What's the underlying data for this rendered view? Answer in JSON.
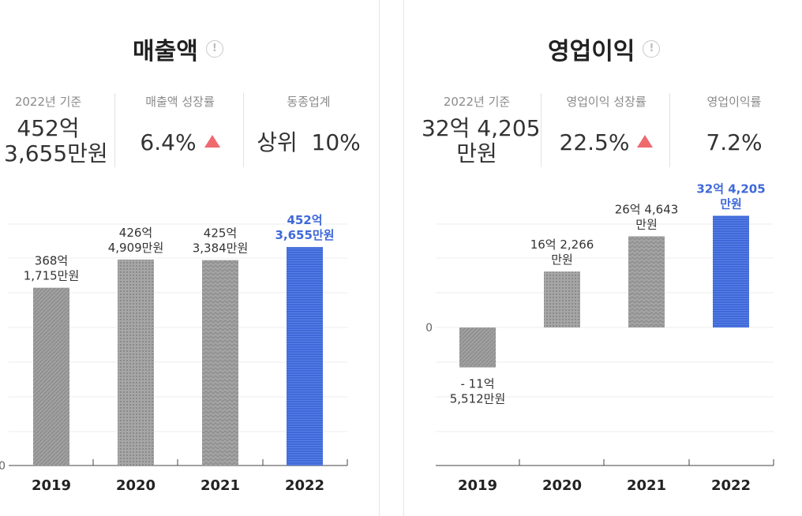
{
  "panels": [
    {
      "title": "매출액",
      "stats": [
        {
          "label": "2022년 기준",
          "value_lines": [
            "452억",
            "3,655만원"
          ]
        },
        {
          "label": "매출액 성장률",
          "value_lines": [
            "6.4%"
          ],
          "trend": "up"
        },
        {
          "label": "동종업계",
          "value_lines": [
            "상위  10%"
          ]
        }
      ]
    },
    {
      "title": "영업이익",
      "stats": [
        {
          "label": "2022년 기준",
          "value_lines": [
            "32억 4,205",
            "만원"
          ]
        },
        {
          "label": "영업이익 성장률",
          "value_lines": [
            "22.5%"
          ],
          "trend": "up"
        },
        {
          "label": "영업이익률",
          "value_lines": [
            "7.2%"
          ]
        }
      ]
    }
  ],
  "chart_data": [
    {
      "type": "bar",
      "title": "매출액",
      "categories": [
        "2019",
        "2020",
        "2021",
        "2022"
      ],
      "values": [
        368.1715,
        426.4909,
        425.3384,
        452.3655
      ],
      "value_unit": "억원",
      "data_labels": [
        [
          "368억",
          "1,715만원"
        ],
        [
          "426억",
          "4,909만원"
        ],
        [
          "425억",
          "3,384만원"
        ],
        [
          "452억",
          "3,655만원"
        ]
      ],
      "highlight_index": 3,
      "y_tick_labels": [
        "0"
      ],
      "ylim": [
        0,
        500
      ],
      "grid": true,
      "colors": {
        "base": "#9e9e9e",
        "highlight": "#3f69d8",
        "highlight_label": "#3f69d8"
      }
    },
    {
      "type": "bar",
      "title": "영업이익",
      "categories": [
        "2019",
        "2020",
        "2021",
        "2022"
      ],
      "values": [
        -11.5512,
        16.2266,
        26.4643,
        32.4205
      ],
      "value_unit": "억원",
      "data_labels": [
        [
          "- 11억",
          "5,512만원"
        ],
        [
          "16억 2,266",
          "만원"
        ],
        [
          "26억 4,643",
          "만원"
        ],
        [
          "32억 4,205",
          "만원"
        ]
      ],
      "highlight_index": 3,
      "y_tick_labels": [
        "0"
      ],
      "ylim": [
        -40,
        30
      ],
      "grid": true,
      "colors": {
        "base": "#9e9e9e",
        "highlight": "#3f69d8",
        "highlight_label": "#3f69d8"
      }
    }
  ]
}
